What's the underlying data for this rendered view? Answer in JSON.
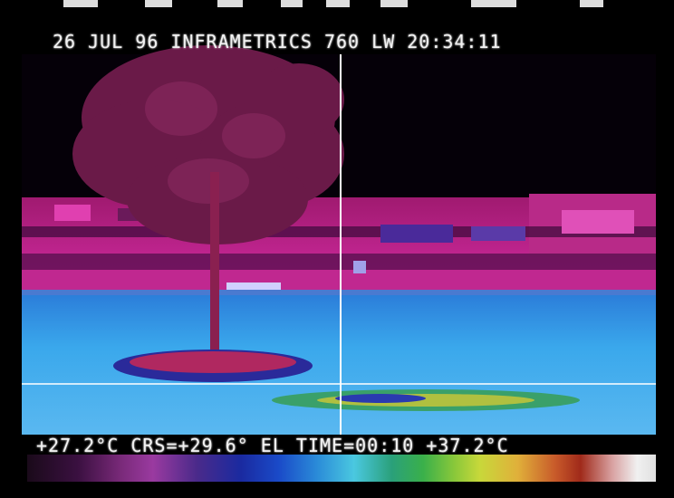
{
  "osd": {
    "header": "26 JUL 96 INFRAMETRICS 760 LW 20:34:11",
    "footer": "+27.2°C CRS=+29.6° EL TIME=00:10 +37.2°C"
  },
  "palette": {
    "min_label": "+27.2°C",
    "max_label": "+37.2°C"
  },
  "colors": {
    "background": "#000000",
    "ground": "#3aa0e8",
    "buildings": "#b0207a",
    "tree": "#7a1a4a",
    "crosshair": "#ffffff"
  }
}
